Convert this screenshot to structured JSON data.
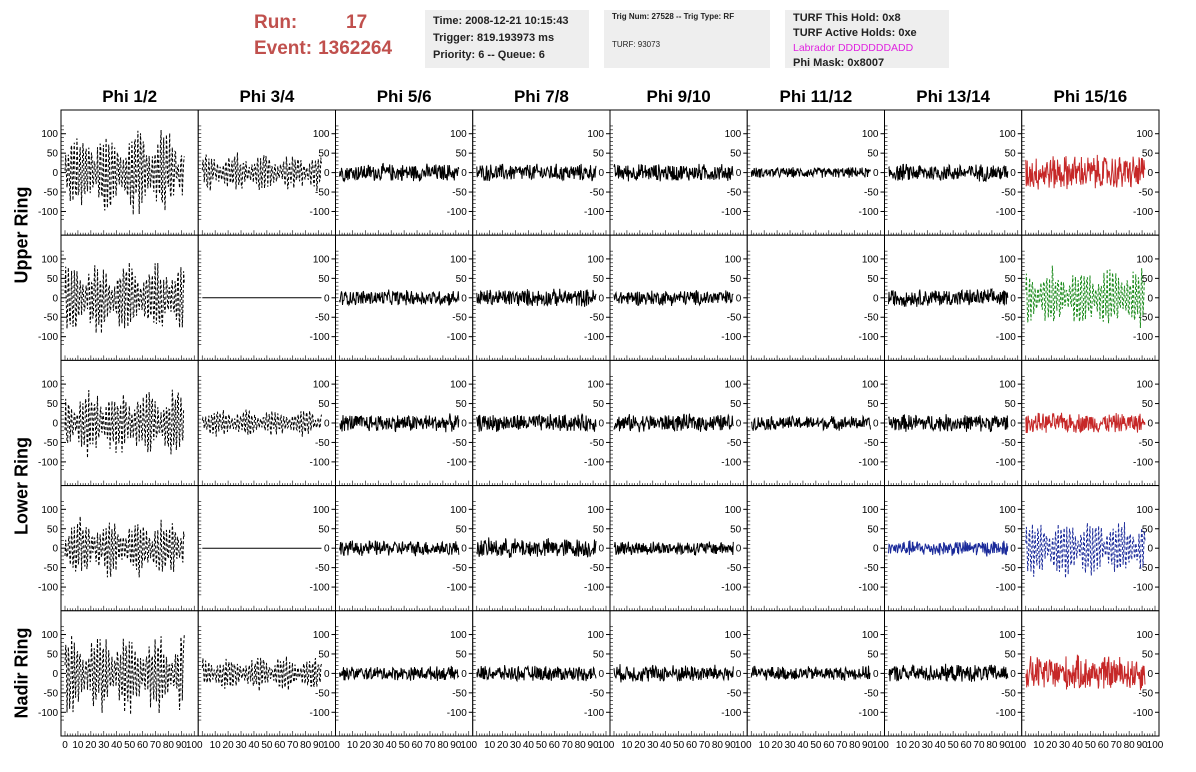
{
  "header": {
    "run_label": "Run:",
    "run_value": "17",
    "event_label": "Event:",
    "event_value": "1362264",
    "time_line": "Time: 2008-12-21 10:15:43",
    "trigger_line": "Trigger: 819.193973 ms",
    "priority_line": "Priority: 6 -- Queue: 6",
    "trig_line": "Trig Num: 27528 -- Trig Type: RF",
    "turf_line": "TURF: 93073",
    "hold_line": "TURF This Hold: 0x8",
    "active_holds_line": "TURF Active Holds: 0xe",
    "labrador_line": "Labrador DDDDDDDADD",
    "phimask_line": "Phi Mask: 0x8007"
  },
  "columns": [
    "Phi 1/2",
    "Phi 3/4",
    "Phi 5/6",
    "Phi 7/8",
    "Phi 9/10",
    "Phi 11/12",
    "Phi 13/14",
    "Phi 15/16"
  ],
  "ring_labels": [
    {
      "text": "Upper Ring",
      "rows": [
        0,
        1
      ]
    },
    {
      "text": "Lower Ring",
      "rows": [
        2,
        3
      ]
    },
    {
      "text": "Nadir Ring",
      "rows": [
        4
      ]
    }
  ],
  "colors": {
    "normal": "#000000",
    "red": "#c62828",
    "green": "#1b8a1b",
    "blue": "#1a2a9a",
    "accent_text": "#c0504d",
    "labrador": "#e023e0",
    "info_bg": "#eeeeee"
  },
  "chart_data": {
    "type": "line",
    "description_grid": "5 rows x 8 columns of waveform panels",
    "x_range": [
      0,
      100
    ],
    "y_range": [
      -125,
      125
    ],
    "y_ticks": [
      -100,
      -50,
      0,
      50,
      100
    ],
    "x_ticks": [
      0,
      10,
      20,
      30,
      40,
      50,
      60,
      70,
      80,
      90,
      100
    ],
    "panels": [
      [
        {
          "style": "dashed",
          "color": "normal",
          "amp": 115,
          "env": "beat"
        },
        {
          "style": "dashed",
          "color": "normal",
          "amp": 55,
          "env": "beat"
        },
        {
          "style": "solid",
          "color": "normal",
          "amp": 25,
          "env": "noise"
        },
        {
          "style": "solid",
          "color": "normal",
          "amp": 25,
          "env": "noise"
        },
        {
          "style": "solid",
          "color": "normal",
          "amp": 25,
          "env": "noise"
        },
        {
          "style": "solid",
          "color": "normal",
          "amp": 15,
          "env": "noise"
        },
        {
          "style": "solid",
          "color": "normal",
          "amp": 25,
          "env": "noise"
        },
        {
          "style": "solid",
          "color": "red",
          "amp": 50,
          "env": "noise"
        }
      ],
      [
        {
          "style": "dashed",
          "color": "normal",
          "amp": 100,
          "env": "beat"
        },
        {
          "style": "solid",
          "color": "normal",
          "amp": 0,
          "env": "flat"
        },
        {
          "style": "solid",
          "color": "normal",
          "amp": 22,
          "env": "noise"
        },
        {
          "style": "solid",
          "color": "normal",
          "amp": 25,
          "env": "noise"
        },
        {
          "style": "solid",
          "color": "normal",
          "amp": 22,
          "env": "noise"
        },
        {
          "style": "solid",
          "color": "normal",
          "amp": 0,
          "env": "blank"
        },
        {
          "style": "solid",
          "color": "normal",
          "amp": 25,
          "env": "noise"
        },
        {
          "style": "dashed",
          "color": "green",
          "amp": 85,
          "env": "beat"
        }
      ],
      [
        {
          "style": "dashed",
          "color": "normal",
          "amp": 95,
          "env": "beat"
        },
        {
          "style": "dashed",
          "color": "normal",
          "amp": 40,
          "env": "beat"
        },
        {
          "style": "solid",
          "color": "normal",
          "amp": 25,
          "env": "noise"
        },
        {
          "style": "solid",
          "color": "normal",
          "amp": 25,
          "env": "noise"
        },
        {
          "style": "solid",
          "color": "normal",
          "amp": 25,
          "env": "noise"
        },
        {
          "style": "solid",
          "color": "normal",
          "amp": 20,
          "env": "noise"
        },
        {
          "style": "solid",
          "color": "normal",
          "amp": 25,
          "env": "noise"
        },
        {
          "style": "solid",
          "color": "red",
          "amp": 28,
          "env": "noise"
        }
      ],
      [
        {
          "style": "dashed",
          "color": "normal",
          "amp": 85,
          "env": "beat"
        },
        {
          "style": "solid",
          "color": "normal",
          "amp": 0,
          "env": "flat"
        },
        {
          "style": "solid",
          "color": "normal",
          "amp": 22,
          "env": "noise"
        },
        {
          "style": "solid",
          "color": "normal",
          "amp": 28,
          "env": "noise"
        },
        {
          "style": "solid",
          "color": "normal",
          "amp": 20,
          "env": "noise"
        },
        {
          "style": "solid",
          "color": "normal",
          "amp": 0,
          "env": "blank"
        },
        {
          "style": "solid",
          "color": "blue",
          "amp": 22,
          "env": "noise"
        },
        {
          "style": "dashed",
          "color": "blue",
          "amp": 80,
          "env": "beat"
        }
      ],
      [
        {
          "style": "dashed",
          "color": "normal",
          "amp": 110,
          "env": "beat"
        },
        {
          "style": "dashed",
          "color": "normal",
          "amp": 50,
          "env": "beat"
        },
        {
          "style": "solid",
          "color": "normal",
          "amp": 20,
          "env": "noise"
        },
        {
          "style": "solid",
          "color": "normal",
          "amp": 22,
          "env": "noise"
        },
        {
          "style": "solid",
          "color": "normal",
          "amp": 25,
          "env": "noise"
        },
        {
          "style": "solid",
          "color": "normal",
          "amp": 20,
          "env": "noise"
        },
        {
          "style": "solid",
          "color": "normal",
          "amp": 25,
          "env": "noise"
        },
        {
          "style": "solid",
          "color": "red",
          "amp": 50,
          "env": "noise"
        }
      ]
    ]
  }
}
